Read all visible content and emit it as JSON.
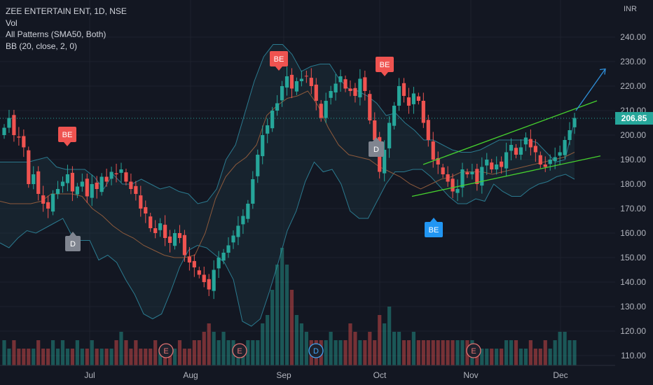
{
  "legend": {
    "title": "ZEE ENTERTAIN ENT, 1D, NSE",
    "vol": "Vol",
    "patterns": "All Patterns (SMA50, Both)",
    "bb": "BB (20, close, 2, 0)"
  },
  "currency_label": "INR",
  "colors": {
    "background": "#131722",
    "up": "#26a69a",
    "down": "#ef5350",
    "bb_band": "#2b7a8f",
    "bb_basis": "#8d5a3c",
    "channel": "#46d12e",
    "arrow": "#2f8fd9",
    "price_tag": "#26a69a",
    "label_be_red": "#ef5350",
    "label_be_blue": "#2196f3",
    "label_d_gray": "#808590",
    "earnings": "#e57373",
    "dividend": "#42a5f5"
  },
  "chart_data": {
    "type": "candlestick",
    "title": "ZEE ENTERTAIN ENT, 1D, NSE",
    "y_ticks": [
      "240.00",
      "230.00",
      "220.00",
      "210.00",
      "200.00",
      "190.00",
      "180.00",
      "170.00",
      "160.00",
      "150.00",
      "140.00",
      "130.00",
      "120.00",
      "110.00"
    ],
    "y_range": [
      107,
      247
    ],
    "x_ticks": [
      "Jul",
      "Aug",
      "Sep",
      "Oct",
      "Nov",
      "Dec"
    ],
    "last_price": "206.85",
    "close_series": [
      203,
      207,
      200,
      199,
      195,
      180,
      184,
      176,
      172,
      170,
      176,
      178,
      181,
      184,
      177,
      179,
      181,
      175,
      180,
      178,
      183,
      181,
      185,
      184,
      186,
      181,
      178,
      176,
      170,
      168,
      162,
      160,
      164,
      158,
      156,
      160,
      158,
      151,
      148,
      146,
      143,
      140,
      137,
      145,
      150,
      152,
      155,
      159,
      163,
      167,
      172,
      182,
      192,
      200,
      204,
      210,
      213,
      220,
      224,
      219,
      222,
      223,
      224,
      220,
      214,
      207,
      214,
      218,
      221,
      224,
      219,
      218,
      216,
      223,
      218,
      206,
      198,
      185,
      194,
      205,
      212,
      220,
      216,
      212,
      217,
      214,
      205,
      198,
      190,
      188,
      184,
      181,
      177,
      178,
      186,
      184,
      185,
      180,
      187,
      190,
      186,
      188,
      187,
      193,
      196,
      192,
      195,
      199,
      195,
      193,
      188,
      187,
      190,
      191,
      193,
      198,
      202,
      207
    ],
    "bb_upper_series": [
      189,
      189,
      189,
      189,
      190,
      191,
      187,
      186,
      186,
      186,
      183,
      178,
      184,
      180,
      180,
      182,
      180,
      178,
      179,
      177,
      176,
      172,
      173,
      178,
      190,
      196,
      209,
      222,
      232,
      237,
      237,
      233,
      226,
      228,
      229,
      229,
      223,
      219,
      218,
      216,
      213,
      208,
      209,
      205,
      202,
      198,
      198,
      196,
      194,
      193,
      193,
      194,
      196,
      198,
      198,
      198,
      198,
      197,
      193,
      189,
      190,
      206
    ],
    "bb_lower_series": [
      156,
      154,
      158,
      161,
      160,
      162,
      164,
      166,
      159,
      157,
      157,
      149,
      151,
      148,
      141,
      135,
      127,
      125,
      127,
      136,
      146,
      153,
      155,
      154,
      151,
      148,
      141,
      124,
      122,
      125,
      136,
      148,
      161,
      169,
      181,
      189,
      185,
      186,
      180,
      169,
      166,
      166,
      173,
      180,
      185,
      185,
      186,
      186,
      183,
      179,
      175,
      172,
      172,
      174,
      173,
      180,
      177,
      175,
      175,
      178,
      180,
      181,
      183,
      184,
      182
    ],
    "bb_basis_series": [
      173,
      172,
      172,
      172,
      173,
      176,
      176,
      176,
      175,
      170,
      167,
      163,
      160,
      158,
      155,
      153,
      151,
      150,
      150,
      151,
      160,
      174,
      183,
      188,
      191,
      196,
      208,
      212,
      215,
      216,
      218,
      212,
      203,
      196,
      192,
      191,
      190,
      187,
      185,
      183,
      180,
      178,
      180,
      182,
      183,
      185,
      185,
      185,
      184,
      185,
      186,
      187,
      188,
      189,
      190,
      191,
      193
    ],
    "volume_series": [
      3,
      2,
      3,
      2,
      2,
      2,
      2,
      3,
      2,
      2,
      3,
      2,
      3,
      2,
      2,
      3,
      2,
      2,
      3,
      2,
      2,
      2,
      2,
      3,
      4,
      3,
      2,
      3,
      2,
      2,
      2,
      3,
      2,
      2,
      2,
      2,
      3,
      2,
      2,
      3,
      3,
      4,
      5,
      4,
      3,
      4,
      3,
      3,
      2,
      2,
      3,
      3,
      3,
      5,
      6,
      9,
      12,
      14,
      12,
      9,
      6,
      5,
      4,
      3,
      3,
      3,
      3,
      4,
      3,
      3,
      3,
      5,
      4,
      3,
      3,
      4,
      3,
      6,
      5,
      7,
      4,
      4,
      3,
      3,
      4,
      3,
      3,
      3,
      3,
      3,
      3,
      3,
      3,
      3,
      3,
      3,
      3,
      2,
      2,
      2,
      2,
      2,
      2,
      3,
      3,
      3,
      2,
      2,
      3,
      2,
      2,
      3,
      2,
      3,
      4,
      4,
      3,
      3
    ],
    "pattern_labels": [
      {
        "text": "BE",
        "style": "bearish",
        "at_close": 184
      },
      {
        "text": "D",
        "style": "neutral",
        "at_close": 164
      },
      {
        "text": "BE",
        "style": "bearish",
        "at_close": 224
      },
      {
        "text": "BE",
        "style": "bearish",
        "at_close": 223
      },
      {
        "text": "D",
        "style": "neutral",
        "at_close": 198
      },
      {
        "text": "BE",
        "style": "bullish",
        "at_close": 177
      }
    ],
    "events": [
      {
        "text": "E",
        "kind": "earnings"
      },
      {
        "text": "E",
        "kind": "earnings"
      },
      {
        "text": "D",
        "kind": "dividend"
      },
      {
        "text": "E",
        "kind": "earnings"
      }
    ],
    "channel_lines": {
      "upper": [
        [
          182,
          188
        ],
        [
          214,
          190
        ]
      ],
      "lower": [
        [
          170,
          175
        ],
        [
          193,
          190
        ]
      ]
    },
    "projection_arrow": {
      "from": 210,
      "to": 227
    }
  }
}
